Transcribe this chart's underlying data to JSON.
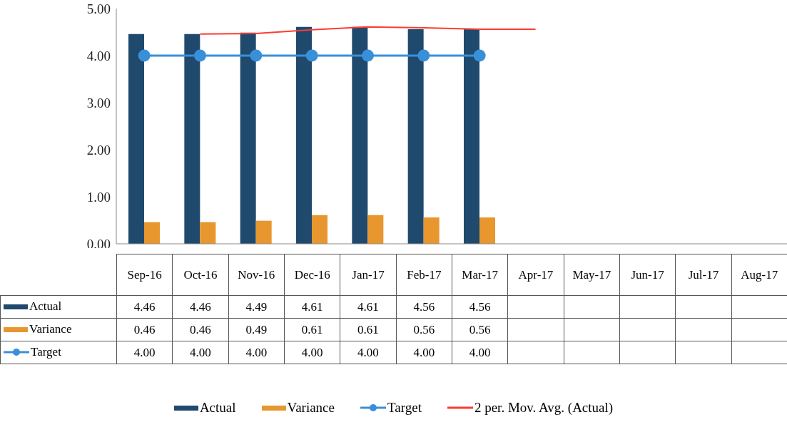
{
  "chart_data": {
    "type": "bar",
    "categories": [
      "Sep-16",
      "Oct-16",
      "Nov-16",
      "Dec-16",
      "Jan-17",
      "Feb-17",
      "Mar-17",
      "Apr-17",
      "May-17",
      "Jun-17",
      "Jul-17",
      "Aug-17"
    ],
    "series": [
      {
        "name": "Actual",
        "color": "#1f4a6e",
        "values": [
          4.46,
          4.46,
          4.49,
          4.61,
          4.61,
          4.56,
          4.56,
          null,
          null,
          null,
          null,
          null
        ],
        "value_labels": [
          "4.46",
          "4.46",
          "4.49",
          "4.61",
          "4.61",
          "4.56",
          "4.56",
          null,
          null,
          null,
          null,
          null
        ]
      },
      {
        "name": "Variance",
        "color": "#e8962e",
        "values": [
          0.46,
          0.46,
          0.49,
          0.61,
          0.61,
          0.56,
          0.56,
          null,
          null,
          null,
          null,
          null
        ],
        "value_labels": [
          "0.46",
          "0.46",
          "0.49",
          "0.61",
          "0.61",
          "0.56",
          "0.56",
          null,
          null,
          null,
          null,
          null
        ]
      },
      {
        "name": "Target",
        "type": "line",
        "marker": "circle",
        "color": "#3a8fd9",
        "values": [
          4.0,
          4.0,
          4.0,
          4.0,
          4.0,
          4.0,
          4.0,
          null,
          null,
          null,
          null,
          null
        ],
        "value_labels": [
          "4.00",
          "4.00",
          "4.00",
          "4.00",
          "4.00",
          "4.00",
          "4.00",
          null,
          null,
          null,
          null,
          null
        ]
      },
      {
        "name": "2 per. Mov. Avg. (Actual)",
        "type": "line",
        "marker": "none",
        "color": "#ff3b30",
        "x": [
          "Oct-16",
          "Nov-16",
          "Dec-16",
          "Jan-17",
          "Feb-17",
          "Mar-17",
          "Apr-17"
        ],
        "values": [
          4.46,
          4.47,
          4.55,
          4.61,
          4.59,
          4.56,
          4.56
        ]
      }
    ],
    "ylim": [
      0,
      5
    ],
    "yticks": [
      {
        "value": 0,
        "label": "0.00"
      },
      {
        "value": 1,
        "label": "1.00"
      },
      {
        "value": 2,
        "label": "2.00"
      },
      {
        "value": 3,
        "label": "3.00"
      },
      {
        "value": 4,
        "label": "4.00"
      },
      {
        "value": 5,
        "label": "5.00"
      }
    ],
    "grid": false,
    "legend": "bottom"
  }
}
